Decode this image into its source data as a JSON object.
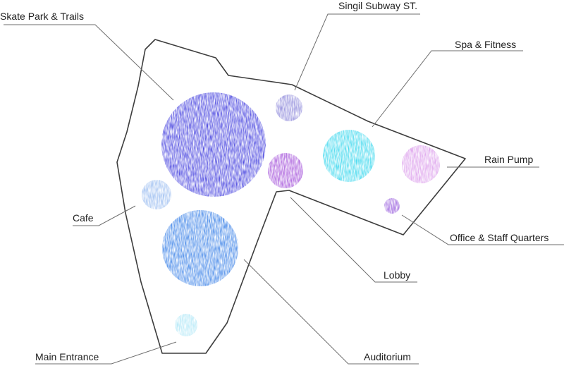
{
  "labels": {
    "skate": "Skate Park & Trails",
    "subway": "Singil Subway ST.",
    "spa": "Spa & Fitness",
    "rain": "Rain Pump",
    "cafe": "Cafe",
    "office": "Office & Staff Quarters",
    "lobby": "Lobby",
    "entrance": "Main Entrance",
    "auditorium": "Auditorium"
  },
  "colors": {
    "skate": "#3a36dc",
    "subway": "#7a74d4",
    "purple": "#9a3fd6",
    "spa": "#2ad4ec",
    "rain": "#d58be8",
    "cafe": "#8ab2ee",
    "office": "#8a46d8",
    "auditorium": "#2f7ae6",
    "entrance": "#9fe2f5"
  }
}
